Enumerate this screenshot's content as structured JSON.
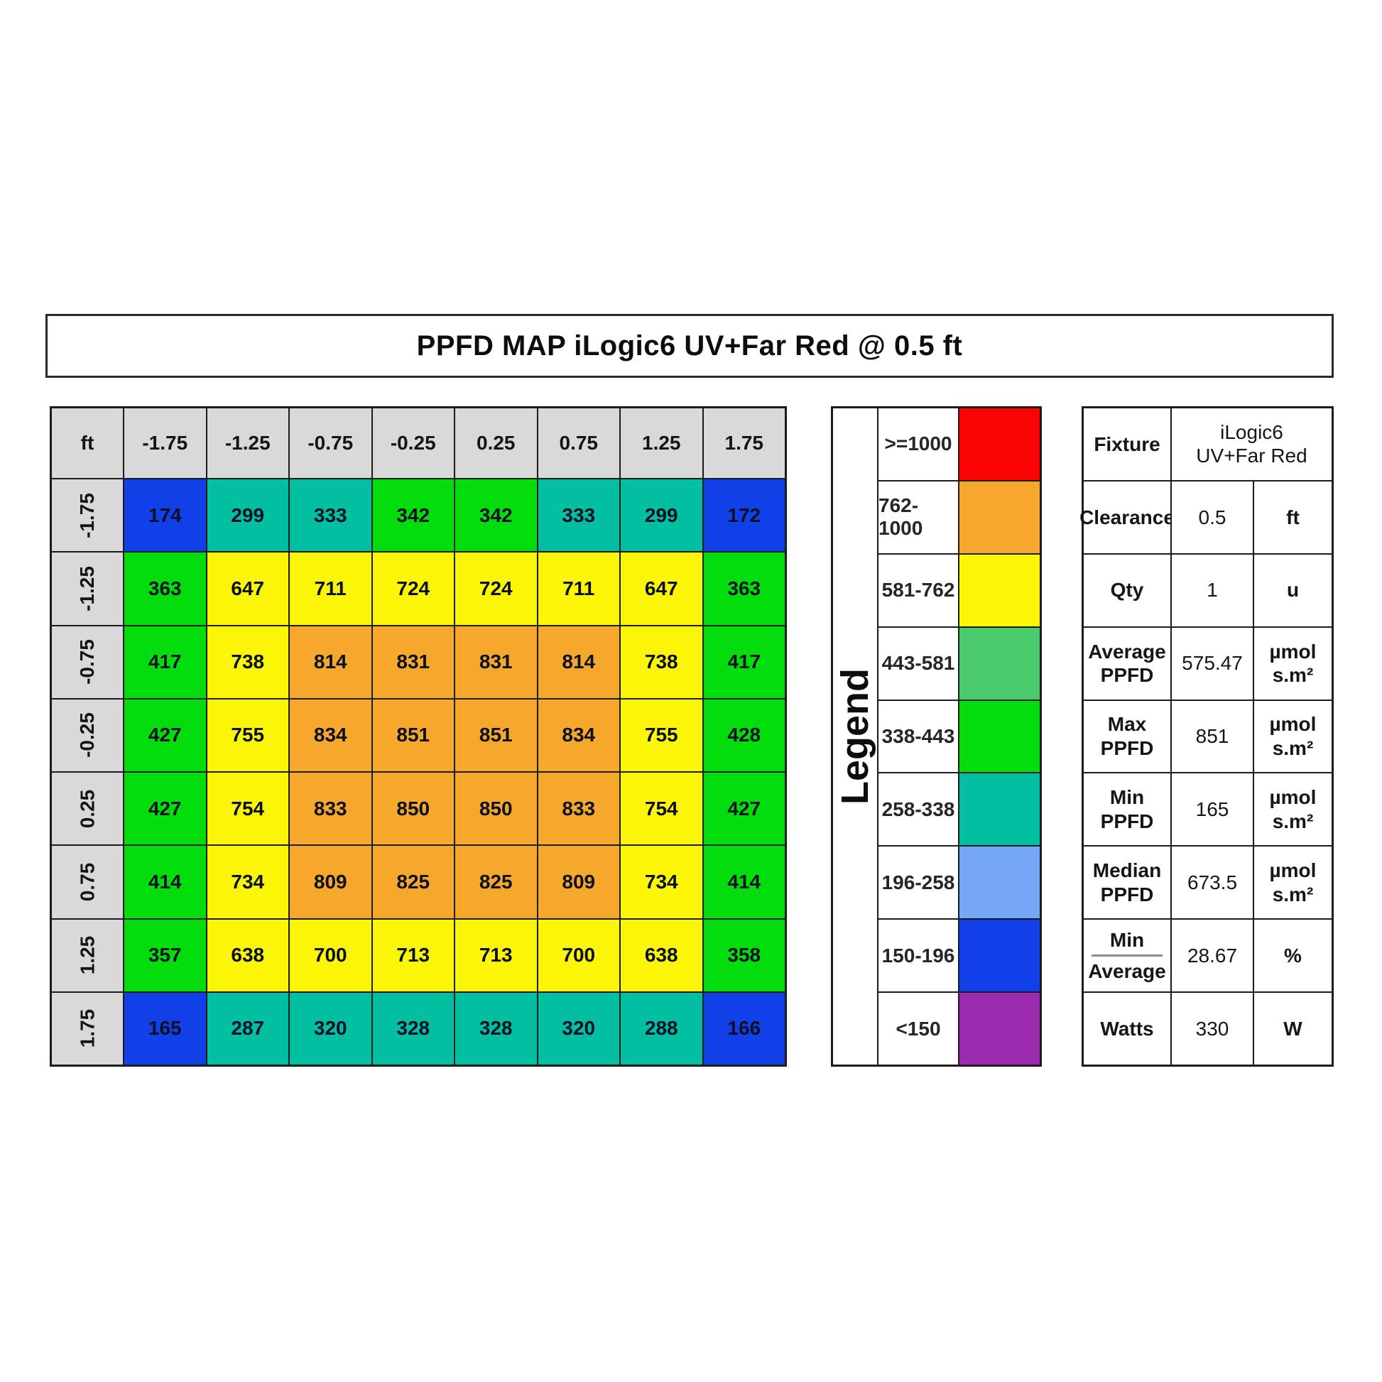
{
  "title": "PPFD MAP iLogic6 UV+Far Red @ 0.5 ft",
  "chart_data": {
    "type": "heatmap",
    "title": "PPFD MAP iLogic6 UV+Far Red @ 0.5 ft",
    "value_unit": "µmol s.m²",
    "corner_label": "ft",
    "x_labels": [
      "-1.75",
      "-1.25",
      "-0.75",
      "-0.25",
      "0.25",
      "0.75",
      "1.25",
      "1.75"
    ],
    "y_labels": [
      "-1.75",
      "-1.25",
      "-0.75",
      "-0.25",
      "0.25",
      "0.75",
      "1.25",
      "1.75"
    ],
    "values": [
      [
        174,
        299,
        333,
        342,
        342,
        333,
        299,
        172
      ],
      [
        363,
        647,
        711,
        724,
        724,
        711,
        647,
        363
      ],
      [
        417,
        738,
        814,
        831,
        831,
        814,
        738,
        417
      ],
      [
        427,
        755,
        834,
        851,
        851,
        834,
        755,
        428
      ],
      [
        427,
        754,
        833,
        850,
        850,
        833,
        754,
        427
      ],
      [
        414,
        734,
        809,
        825,
        825,
        809,
        734,
        414
      ],
      [
        357,
        638,
        700,
        713,
        713,
        700,
        638,
        358
      ],
      [
        165,
        287,
        320,
        328,
        328,
        320,
        288,
        166
      ]
    ]
  },
  "legend": {
    "title": "Legend",
    "rows": [
      {
        "label": ">=1000",
        "min": 1000,
        "color": "#fb0404"
      },
      {
        "label": "762-1000",
        "min": 762,
        "color": "#f5a82b"
      },
      {
        "label": "581-762",
        "min": 581,
        "color": "#fbf607"
      },
      {
        "label": "443-581",
        "min": 443,
        "color": "#49cb6d"
      },
      {
        "label": "338-443",
        "min": 338,
        "color": "#04dd0c"
      },
      {
        "label": "258-338",
        "min": 258,
        "color": "#02bfa2"
      },
      {
        "label": "196-258",
        "min": 196,
        "color": "#74a7f5"
      },
      {
        "label": "150-196",
        "min": 150,
        "color": "#1240e8"
      },
      {
        "label": "<150",
        "min": 0,
        "color": "#9c2caf"
      }
    ]
  },
  "stats": {
    "rows": [
      {
        "label": [
          "Fixture"
        ],
        "value": [
          "iLogic6",
          "UV+Far Red"
        ],
        "unit": null,
        "merged": true
      },
      {
        "label": [
          "Clearance"
        ],
        "value": [
          "0.5"
        ],
        "unit": [
          "ft"
        ]
      },
      {
        "label": [
          "Qty"
        ],
        "value": [
          "1"
        ],
        "unit": [
          "u"
        ]
      },
      {
        "label": [
          "Average",
          "PPFD"
        ],
        "value": [
          "575.47"
        ],
        "unit": [
          "µmol",
          "s.m²"
        ]
      },
      {
        "label": [
          "Max",
          "PPFD"
        ],
        "value": [
          "851"
        ],
        "unit": [
          "µmol",
          "s.m²"
        ]
      },
      {
        "label": [
          "Min",
          "PPFD"
        ],
        "value": [
          "165"
        ],
        "unit": [
          "µmol",
          "s.m²"
        ]
      },
      {
        "label": [
          "Median",
          "PPFD"
        ],
        "value": [
          "673.5"
        ],
        "unit": [
          "µmol",
          "s.m²"
        ]
      },
      {
        "label": [
          "Min",
          "Average"
        ],
        "value": [
          "28.67"
        ],
        "unit": [
          "%"
        ],
        "fraction": true
      },
      {
        "label": [
          "Watts"
        ],
        "value": [
          "330"
        ],
        "unit": [
          "W"
        ]
      }
    ]
  }
}
